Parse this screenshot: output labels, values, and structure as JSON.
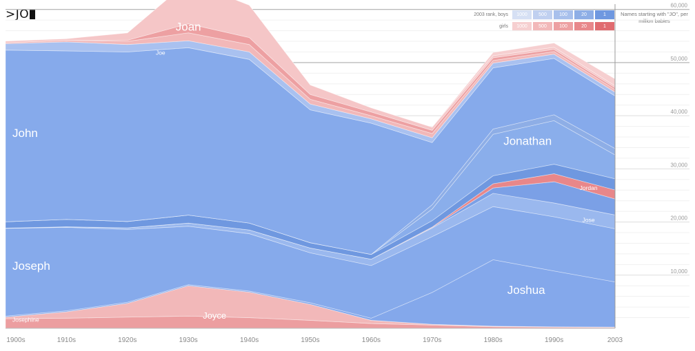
{
  "search": {
    "query": ">JO"
  },
  "legend": {
    "rows": [
      {
        "label": "2003 rank, boys",
        "cells": [
          "1000",
          "500",
          "100",
          "20",
          "1"
        ],
        "colors": [
          "#d6e0f4",
          "#c0d0f0",
          "#a8c0ec",
          "#8eaee6",
          "#6f98e0"
        ]
      },
      {
        "label": "girls",
        "cells": [
          "1000",
          "500",
          "100",
          "20",
          "1"
        ],
        "colors": [
          "#f6cfd0",
          "#f2b8b9",
          "#eda0a2",
          "#e8878a",
          "#e06b6f"
        ]
      }
    ]
  },
  "y_axis_title": "Names starting with \"JO\", per million babies",
  "chart_data": {
    "type": "area",
    "stacked": true,
    "x": [
      "1900s",
      "1910s",
      "1920s",
      "1930s",
      "1940s",
      "1950s",
      "1960s",
      "1970s",
      "1980s",
      "1990s",
      "2003"
    ],
    "y_ticks": [
      10000,
      20000,
      30000,
      40000,
      50000,
      60000
    ],
    "y_tick_labels": [
      "10,000",
      "20,000",
      "30,000",
      "40,000",
      "50,000",
      "60,000"
    ],
    "ylim": [
      0,
      61000
    ],
    "series": [
      {
        "name": "Josephine",
        "sex": "girl",
        "values": [
          1800,
          1900,
          2100,
          2300,
          2000,
          1500,
          900,
          600,
          300,
          200,
          150
        ]
      },
      {
        "name": "Joyce",
        "sex": "girl",
        "values": [
          300,
          1200,
          2600,
          5700,
          4800,
          3000,
          600,
          150,
          100,
          80,
          80
        ]
      },
      {
        "name": "Joshua",
        "sex": "boy",
        "values": [
          200,
          200,
          200,
          200,
          200,
          300,
          400,
          6000,
          12500,
          10500,
          8500
        ]
      },
      {
        "name": "Joseph",
        "sex": "boy",
        "values": [
          16500,
          15700,
          13700,
          11000,
          10800,
          9400,
          9900,
          10500,
          10000,
          10200,
          10000
        ]
      },
      {
        "name": "Jose",
        "sex": "boy",
        "values": [
          50,
          100,
          300,
          600,
          700,
          900,
          1200,
          1600,
          2500,
          2600,
          2600
        ]
      },
      {
        "name": "Jordan",
        "sex": "boy",
        "values": [
          0,
          0,
          0,
          0,
          0,
          0,
          0,
          100,
          1000,
          4000,
          3000
        ]
      },
      {
        "name": "",
        "sex": "girl",
        "values": [
          0,
          0,
          0,
          0,
          0,
          0,
          0,
          100,
          800,
          1500,
          1700
        ]
      },
      {
        "name": "",
        "sex": "boy",
        "values": [
          1200,
          1400,
          1200,
          1500,
          1300,
          1000,
          900,
          1200,
          1500,
          1800,
          2100
        ]
      },
      {
        "name": "Jonathan",
        "sex": "boy",
        "values": [
          0,
          0,
          0,
          0,
          0,
          0,
          0,
          2200,
          7800,
          8200,
          4500
        ]
      },
      {
        "name": "",
        "sex": "boy",
        "values": [
          0,
          0,
          0,
          0,
          0,
          0,
          0,
          800,
          1000,
          1100,
          1200
        ]
      },
      {
        "name": "John",
        "sex": "boy",
        "values": [
          32300,
          31700,
          31900,
          31500,
          30800,
          25000,
          24700,
          11700,
          11500,
          10600,
          9900
        ]
      },
      {
        "name": "Joe",
        "sex": "boy",
        "values": [
          1200,
          1700,
          1400,
          1300,
          1400,
          1100,
          800,
          900,
          900,
          800,
          700
        ]
      },
      {
        "name": "",
        "sex": "girl",
        "values": [
          200,
          300,
          600,
          1500,
          1400,
          900,
          600,
          800,
          500,
          500,
          500
        ]
      },
      {
        "name": "",
        "sex": "girl",
        "values": [
          0,
          0,
          200,
          1700,
          1300,
          900,
          700,
          600,
          500,
          400,
          350
        ]
      },
      {
        "name": "Joan",
        "sex": "girl",
        "values": [
          300,
          300,
          1400,
          8000,
          6100,
          1800,
          800,
          600,
          400,
          400,
          350
        ]
      },
      {
        "name": "",
        "sex": "girl",
        "values": [
          0,
          0,
          0,
          0,
          0,
          0,
          0,
          0,
          600,
          800,
          1300
        ]
      }
    ],
    "labels": [
      {
        "text": "John",
        "x": "1900s",
        "y": 36000,
        "size": "large"
      },
      {
        "text": "Joan",
        "x": "1930s",
        "y": 56000,
        "size": "large"
      },
      {
        "text": "Joe",
        "x": "1920s",
        "y": 51500,
        "size": "small"
      },
      {
        "text": "Joseph",
        "x": "1900s",
        "y": 11000,
        "size": "large"
      },
      {
        "text": "Josephine",
        "x": "1900s",
        "y": 1200,
        "size": "small"
      },
      {
        "text": "Joyce",
        "x": "1930s",
        "y": 1800,
        "size": "medium"
      },
      {
        "text": "Joshua",
        "x": "1980s",
        "y": 6500,
        "size": "large"
      },
      {
        "text": "Jonathan",
        "x": "1980s",
        "y": 34500,
        "size": "large"
      },
      {
        "text": "Jordan",
        "x": "1990s",
        "y": 26000,
        "size": "small"
      },
      {
        "text": "Jose",
        "x": "1990s",
        "y": 20000,
        "size": "small"
      }
    ]
  }
}
